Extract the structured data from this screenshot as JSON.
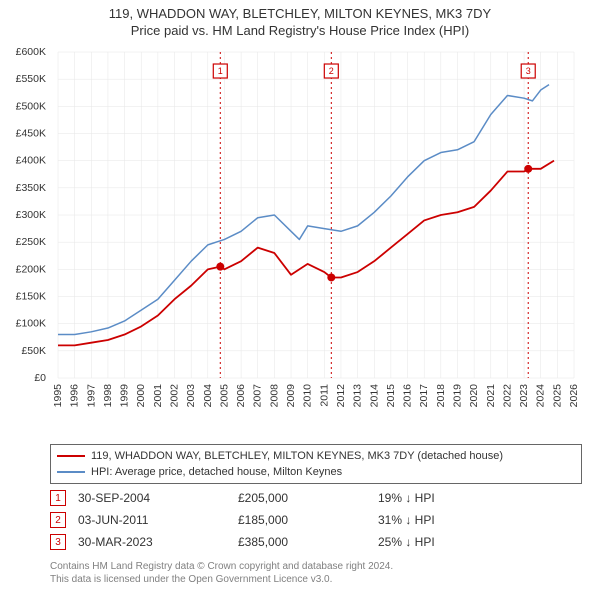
{
  "header": {
    "title": "119, WHADDON WAY, BLETCHLEY, MILTON KEYNES, MK3 7DY",
    "subtitle": "Price paid vs. HM Land Registry's House Price Index (HPI)"
  },
  "chart": {
    "type": "line",
    "background_color": "#ffffff",
    "grid_color": "#e6e6e6",
    "axis_text_color": "#333333",
    "axis_fontsize": 10.5,
    "xlim": [
      1995,
      2026
    ],
    "ylim": [
      0,
      600000
    ],
    "xticks": [
      1995,
      1996,
      1997,
      1998,
      1999,
      2000,
      2001,
      2002,
      2003,
      2004,
      2005,
      2006,
      2007,
      2008,
      2009,
      2010,
      2011,
      2012,
      2013,
      2014,
      2015,
      2016,
      2017,
      2018,
      2019,
      2020,
      2021,
      2022,
      2023,
      2024,
      2025,
      2026
    ],
    "yticks": [
      0,
      50000,
      100000,
      150000,
      200000,
      250000,
      300000,
      350000,
      400000,
      450000,
      500000,
      550000,
      600000
    ],
    "ytick_labels": [
      "£0",
      "£50K",
      "£100K",
      "£150K",
      "£200K",
      "£250K",
      "£300K",
      "£350K",
      "£400K",
      "£450K",
      "£500K",
      "£550K",
      "£600K"
    ],
    "series": [
      {
        "name": "property_price",
        "label": "119, WHADDON WAY, BLETCHLEY, MILTON KEYNES, MK3 7DY (detached house)",
        "color": "#cc0000",
        "line_width": 1.8,
        "data": [
          [
            1995,
            60000
          ],
          [
            1996,
            60000
          ],
          [
            1997,
            65000
          ],
          [
            1998,
            70000
          ],
          [
            1999,
            80000
          ],
          [
            2000,
            95000
          ],
          [
            2001,
            115000
          ],
          [
            2002,
            145000
          ],
          [
            2003,
            170000
          ],
          [
            2004,
            200000
          ],
          [
            2004.75,
            205000
          ],
          [
            2005,
            200000
          ],
          [
            2006,
            215000
          ],
          [
            2007,
            240000
          ],
          [
            2008,
            230000
          ],
          [
            2009,
            190000
          ],
          [
            2010,
            210000
          ],
          [
            2011,
            195000
          ],
          [
            2011.42,
            185000
          ],
          [
            2012,
            185000
          ],
          [
            2013,
            195000
          ],
          [
            2014,
            215000
          ],
          [
            2015,
            240000
          ],
          [
            2016,
            265000
          ],
          [
            2017,
            290000
          ],
          [
            2018,
            300000
          ],
          [
            2019,
            305000
          ],
          [
            2020,
            315000
          ],
          [
            2021,
            345000
          ],
          [
            2022,
            380000
          ],
          [
            2023,
            380000
          ],
          [
            2023.25,
            385000
          ],
          [
            2024,
            385000
          ],
          [
            2024.8,
            400000
          ]
        ]
      },
      {
        "name": "hpi",
        "label": "HPI: Average price, detached house, Milton Keynes",
        "color": "#5b8cc6",
        "line_width": 1.5,
        "data": [
          [
            1995,
            80000
          ],
          [
            1996,
            80000
          ],
          [
            1997,
            85000
          ],
          [
            1998,
            92000
          ],
          [
            1999,
            105000
          ],
          [
            2000,
            125000
          ],
          [
            2001,
            145000
          ],
          [
            2002,
            180000
          ],
          [
            2003,
            215000
          ],
          [
            2004,
            245000
          ],
          [
            2005,
            255000
          ],
          [
            2006,
            270000
          ],
          [
            2007,
            295000
          ],
          [
            2008,
            300000
          ],
          [
            2009,
            270000
          ],
          [
            2009.5,
            255000
          ],
          [
            2010,
            280000
          ],
          [
            2011,
            275000
          ],
          [
            2012,
            270000
          ],
          [
            2013,
            280000
          ],
          [
            2014,
            305000
          ],
          [
            2015,
            335000
          ],
          [
            2016,
            370000
          ],
          [
            2017,
            400000
          ],
          [
            2018,
            415000
          ],
          [
            2019,
            420000
          ],
          [
            2020,
            435000
          ],
          [
            2021,
            485000
          ],
          [
            2022,
            520000
          ],
          [
            2023,
            515000
          ],
          [
            2023.5,
            510000
          ],
          [
            2024,
            530000
          ],
          [
            2024.5,
            540000
          ]
        ]
      }
    ],
    "sale_markers": [
      {
        "n": "1",
        "x": 2004.75,
        "y": 205000,
        "badge_y": 565000
      },
      {
        "n": "2",
        "x": 2011.42,
        "y": 185000,
        "badge_y": 565000
      },
      {
        "n": "3",
        "x": 2023.25,
        "y": 385000,
        "badge_y": 565000
      }
    ],
    "marker_point_color": "#cc0000",
    "marker_line_color": "#cc0000",
    "marker_line_dash": "2,3"
  },
  "legend": {
    "border_color": "#666666",
    "items": [
      {
        "color": "#cc0000",
        "label": "119, WHADDON WAY, BLETCHLEY, MILTON KEYNES, MK3 7DY (detached house)"
      },
      {
        "color": "#5b8cc6",
        "label": "HPI: Average price, detached house, Milton Keynes"
      }
    ]
  },
  "sales_table": {
    "rows": [
      {
        "n": "1",
        "date": "30-SEP-2004",
        "price": "£205,000",
        "delta": "19% ↓ HPI"
      },
      {
        "n": "2",
        "date": "03-JUN-2011",
        "price": "£185,000",
        "delta": "31% ↓ HPI"
      },
      {
        "n": "3",
        "date": "30-MAR-2023",
        "price": "£385,000",
        "delta": "25% ↓ HPI"
      }
    ]
  },
  "attribution": {
    "line1": "Contains HM Land Registry data © Crown copyright and database right 2024.",
    "line2": "This data is licensed under the Open Government Licence v3.0."
  }
}
